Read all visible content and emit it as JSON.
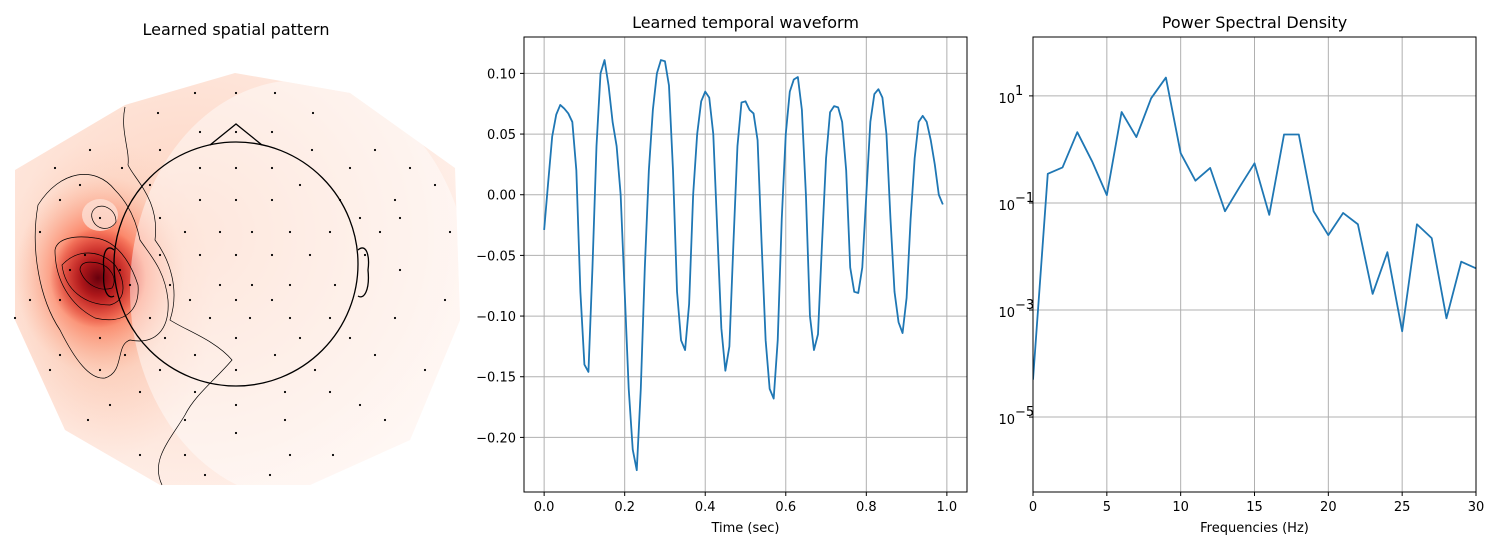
{
  "chart_data": [
    {
      "type": "heatmap",
      "title": "Learned spatial pattern",
      "colormap": "Reds",
      "peak_region": "left-temporal",
      "sensor_count": 102
    },
    {
      "type": "line",
      "title": "Learned temporal waveform",
      "xlabel": "Time (sec)",
      "ylabel": "",
      "xlim": [
        -0.05,
        1.05
      ],
      "ylim": [
        -0.245,
        0.13
      ],
      "xticks": [
        0.0,
        0.2,
        0.4,
        0.6,
        0.8,
        1.0
      ],
      "xtick_labels": [
        "0.0",
        "0.2",
        "0.4",
        "0.6",
        "0.8",
        "1.0"
      ],
      "yticks": [
        0.1,
        0.05,
        0.0,
        -0.05,
        -0.1,
        -0.15,
        -0.2
      ],
      "ytick_labels": [
        "0.10",
        "0.05",
        "0.00",
        "−0.05",
        "−0.10",
        "−0.15",
        "−0.20"
      ],
      "grid": true,
      "color": "#1f77b4",
      "x": [
        0.0,
        0.01,
        0.02,
        0.03,
        0.04,
        0.05,
        0.06,
        0.07,
        0.08,
        0.09,
        0.1,
        0.11,
        0.12,
        0.13,
        0.14,
        0.15,
        0.16,
        0.17,
        0.18,
        0.19,
        0.2,
        0.21,
        0.22,
        0.23,
        0.24,
        0.25,
        0.26,
        0.27,
        0.28,
        0.29,
        0.3,
        0.31,
        0.32,
        0.33,
        0.34,
        0.35,
        0.36,
        0.37,
        0.38,
        0.39,
        0.4,
        0.41,
        0.42,
        0.43,
        0.44,
        0.45,
        0.46,
        0.47,
        0.48,
        0.49,
        0.5,
        0.51,
        0.52,
        0.53,
        0.54,
        0.55,
        0.56,
        0.57,
        0.58,
        0.59,
        0.6,
        0.61,
        0.62,
        0.63,
        0.64,
        0.65,
        0.66,
        0.67,
        0.68,
        0.69,
        0.7,
        0.71,
        0.72,
        0.73,
        0.74,
        0.75,
        0.76,
        0.77,
        0.78,
        0.79,
        0.8,
        0.81,
        0.82,
        0.83,
        0.84,
        0.85,
        0.86,
        0.87,
        0.88,
        0.89,
        0.9,
        0.91,
        0.92,
        0.93,
        0.94,
        0.95,
        0.96,
        0.97,
        0.98,
        0.99
      ],
      "y": [
        -0.029,
        0.01,
        0.048,
        0.066,
        0.074,
        0.071,
        0.067,
        0.06,
        0.02,
        -0.08,
        -0.14,
        -0.146,
        -0.06,
        0.04,
        0.1,
        0.111,
        0.09,
        0.06,
        0.04,
        0.0,
        -0.08,
        -0.16,
        -0.21,
        -0.227,
        -0.16,
        -0.06,
        0.02,
        0.07,
        0.1,
        0.111,
        0.11,
        0.09,
        0.02,
        -0.08,
        -0.12,
        -0.128,
        -0.09,
        0.0,
        0.05,
        0.077,
        0.085,
        0.08,
        0.05,
        -0.03,
        -0.11,
        -0.145,
        -0.125,
        -0.04,
        0.04,
        0.076,
        0.077,
        0.07,
        0.067,
        0.045,
        -0.04,
        -0.12,
        -0.16,
        -0.168,
        -0.12,
        -0.02,
        0.05,
        0.085,
        0.095,
        0.097,
        0.07,
        0.0,
        -0.1,
        -0.128,
        -0.115,
        -0.04,
        0.03,
        0.068,
        0.073,
        0.072,
        0.06,
        0.02,
        -0.06,
        -0.08,
        -0.081,
        -0.06,
        0.0,
        0.06,
        0.083,
        0.087,
        0.08,
        0.05,
        -0.02,
        -0.08,
        -0.105,
        -0.114,
        -0.085,
        -0.02,
        0.03,
        0.06,
        0.065,
        0.06,
        0.045,
        0.025,
        0.0,
        -0.008
      ]
    },
    {
      "type": "line",
      "title": "Power Spectral Density",
      "xlabel": "Frequencies (Hz)",
      "ylabel": "",
      "yscale": "log",
      "xlim": [
        0,
        30
      ],
      "ylim_log10": [
        -6.4,
        2.1
      ],
      "xticks": [
        0,
        5,
        10,
        15,
        20,
        25,
        30
      ],
      "xtick_labels": [
        "0",
        "5",
        "10",
        "15",
        "20",
        "25",
        "30"
      ],
      "yticks_log10": [
        1,
        -1,
        -3,
        -5
      ],
      "ytick_labels": [
        "10",
        "10",
        "10",
        "10"
      ],
      "ytick_exponents": [
        "1",
        "−1",
        "−3",
        "−5"
      ],
      "grid": true,
      "color": "#1f77b4",
      "x": [
        0,
        1,
        2,
        3,
        4,
        5,
        6,
        7,
        8,
        9,
        10,
        11,
        12,
        13,
        14,
        15,
        16,
        17,
        18,
        19,
        20,
        21,
        22,
        23,
        24,
        25,
        26,
        27,
        28,
        29,
        30
      ],
      "y": [
        5e-05,
        0.35,
        0.46,
        2.1,
        0.6,
        0.14,
        5.0,
        1.7,
        9.0,
        22.0,
        0.85,
        0.26,
        0.45,
        0.07,
        0.2,
        0.55,
        0.06,
        1.9,
        1.9,
        0.07,
        0.025,
        0.065,
        0.04,
        0.002,
        0.012,
        0.0004,
        0.04,
        0.022,
        0.0007,
        0.008,
        0.006
      ]
    }
  ]
}
